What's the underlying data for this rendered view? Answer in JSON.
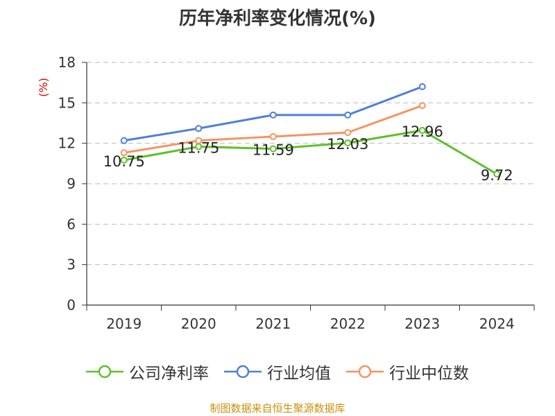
{
  "chart_data": {
    "type": "line",
    "title": "历年净利率变化情况(%)",
    "ylabel": "(%)",
    "categories": [
      "2019",
      "2020",
      "2021",
      "2022",
      "2023",
      "2024"
    ],
    "ylim": [
      0,
      18
    ],
    "yticks": [
      0,
      3,
      6,
      9,
      12,
      15,
      18
    ],
    "grid": true,
    "legend_position": "bottom",
    "series": [
      {
        "name": "公司净利率",
        "color": "#5cc129",
        "values": [
          10.75,
          11.75,
          11.59,
          12.03,
          12.96,
          9.72
        ],
        "labels": [
          "10.75",
          "11.75",
          "11.59",
          "12.03",
          "12.96",
          "9.72"
        ]
      },
      {
        "name": "行业均值",
        "color": "#4d7fdb",
        "values": [
          12.2,
          13.1,
          14.1,
          14.1,
          16.2,
          null
        ]
      },
      {
        "name": "行业中位数",
        "color": "#f59460",
        "values": [
          11.3,
          12.2,
          12.5,
          12.8,
          14.8,
          null
        ]
      }
    ]
  },
  "source_note": "制图数据来自恒生聚源数据库",
  "colors": {
    "axis": "#333333",
    "grid": "#bbbbbb",
    "ylabel": "#dd0000"
  }
}
